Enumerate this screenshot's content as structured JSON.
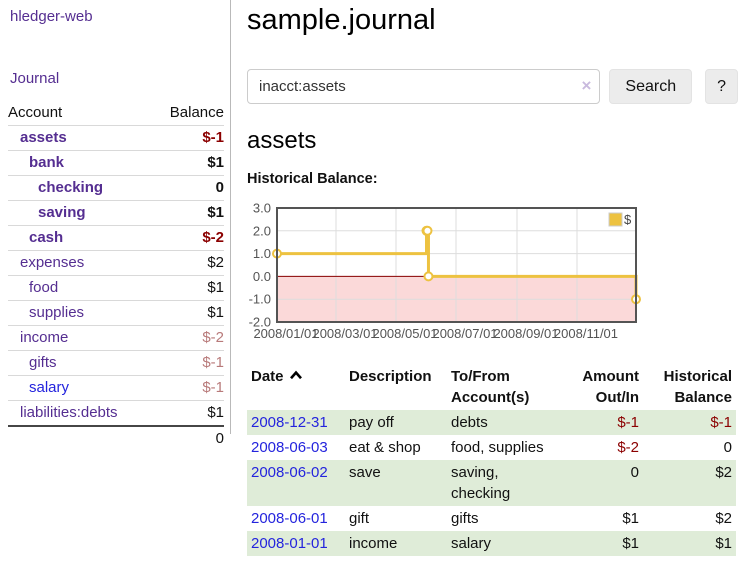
{
  "colors": {
    "link_purple": "#552e91",
    "link_blue": "#2424dd",
    "negative_strong": "#8b0000",
    "negative_muted": "#b87a7a",
    "row_stripe_green": "#dfecd8",
    "chart_series_gold": "#edc240",
    "chart_negative_zone": "#fbd9d9",
    "chart_zero_line": "#8b0000"
  },
  "sidebar": {
    "app_title": "hledger-web",
    "nav": {
      "journal": "Journal"
    },
    "columns": {
      "account": "Account",
      "balance": "Balance"
    },
    "accounts": [
      {
        "name": "assets",
        "depth": 1,
        "bold": true,
        "balance": "$-1"
      },
      {
        "name": "bank",
        "depth": 2,
        "bold": true,
        "balance": "$1"
      },
      {
        "name": "checking",
        "depth": 3,
        "bold": true,
        "balance": "0"
      },
      {
        "name": "saving",
        "depth": 3,
        "bold": true,
        "balance": "$1"
      },
      {
        "name": "cash",
        "depth": 2,
        "bold": true,
        "balance": "$-2"
      },
      {
        "name": "expenses",
        "depth": 1,
        "bold": false,
        "balance": "$2"
      },
      {
        "name": "food",
        "depth": 2,
        "bold": false,
        "balance": "$1"
      },
      {
        "name": "supplies",
        "depth": 2,
        "bold": false,
        "balance": "$1"
      },
      {
        "name": "income",
        "depth": 1,
        "bold": false,
        "balance": "$-2"
      },
      {
        "name": "gifts",
        "depth": 2,
        "bold": false,
        "balance": "$-1"
      },
      {
        "name": "salary",
        "depth": 2,
        "bold": false,
        "balance": "$-1",
        "unvisited": true
      },
      {
        "name": "liabilities:debts",
        "depth": 1,
        "bold": false,
        "balance": "$1"
      }
    ],
    "total": "0"
  },
  "main": {
    "title": "sample.journal",
    "search": {
      "value": "inacct:assets",
      "clear_icon": "×",
      "button_label": "Search",
      "help_label": "?"
    },
    "account_title": "assets",
    "chart_title": "Historical Balance:"
  },
  "chart_data": {
    "type": "line",
    "step": true,
    "title": "Historical Balance of assets",
    "x_range": [
      "2008-01-01",
      "2008-12-31"
    ],
    "x_tick_dates": [
      "2008-01-01",
      "2008-03-01",
      "2008-05-01",
      "2008-07-01",
      "2008-09-01",
      "2008-11-01"
    ],
    "x_tick_labels": [
      "2008/01/01",
      "2008/03/01",
      "2008/05/01",
      "2008/07/01",
      "2008/09/01",
      "2008/11/01"
    ],
    "y_ticks": [
      3.0,
      2.0,
      1.0,
      0.0,
      -1.0,
      -2.0
    ],
    "ylim": [
      -2.0,
      3.0
    ],
    "grid": true,
    "legend": {
      "label": "$",
      "position": "top-right"
    },
    "negative_zone_color": "#fbd9d9",
    "zero_line_color": "#8b0000",
    "series": [
      {
        "name": "$",
        "color": "#edc240",
        "points": [
          [
            "2008-01-01",
            1
          ],
          [
            "2008-06-01",
            2
          ],
          [
            "2008-06-02",
            2
          ],
          [
            "2008-06-03",
            0
          ],
          [
            "2008-12-31",
            -1
          ]
        ]
      }
    ]
  },
  "register": {
    "headers": [
      "Date",
      "Description",
      "To/From Account(s)",
      "Amount Out/In",
      "Historical Balance"
    ],
    "sort_indicator": "up",
    "rows": [
      {
        "date": "2008-12-31",
        "description": "pay off",
        "accounts": "debts",
        "amount": "$-1",
        "balance": "$-1"
      },
      {
        "date": "2008-06-03",
        "description": "eat & shop",
        "accounts": "food, supplies",
        "amount": "$-2",
        "balance": "0"
      },
      {
        "date": "2008-06-02",
        "description": "save",
        "accounts": "saving, checking",
        "amount": "0",
        "balance": "$2"
      },
      {
        "date": "2008-06-01",
        "description": "gift",
        "accounts": "gifts",
        "amount": "$1",
        "balance": "$2"
      },
      {
        "date": "2008-01-01",
        "description": "income",
        "accounts": "salary",
        "amount": "$1",
        "balance": "$1"
      }
    ]
  }
}
